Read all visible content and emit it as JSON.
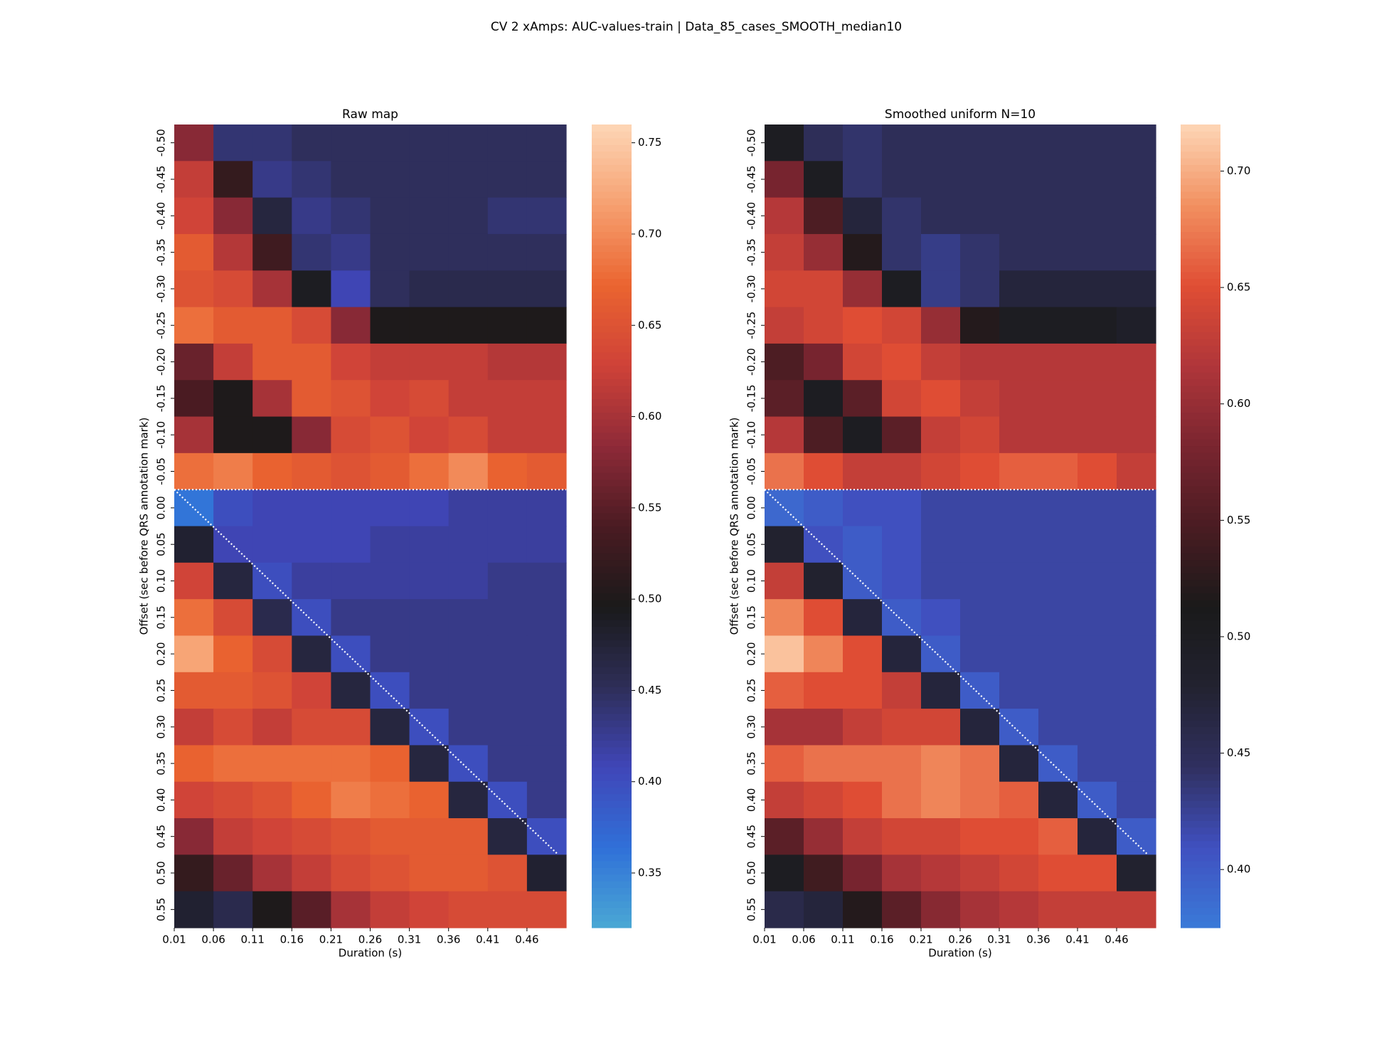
{
  "title": "CV 2 xAmps: AUC-values-train | Data_85_cases_SMOOTH_median10",
  "chart_data": [
    {
      "type": "heatmap",
      "title": "Raw map",
      "xlabel": "Duration (s)",
      "ylabel": "Offset (sec before QRS annotation mark)",
      "x": [
        0.01,
        0.06,
        0.11,
        0.16,
        0.21,
        0.26,
        0.31,
        0.36,
        0.41,
        0.46
      ],
      "y": [
        -0.5,
        -0.45,
        -0.4,
        -0.35,
        -0.3,
        -0.25,
        -0.2,
        -0.15,
        -0.1,
        -0.05,
        0,
        0.05,
        0.1,
        0.15,
        0.2,
        0.25,
        0.3,
        0.35,
        0.4,
        0.45,
        0.5,
        0.55
      ],
      "xlim": [
        0.01,
        0.51
      ],
      "ylim": [
        -0.5,
        0.6
      ],
      "xticks": [
        0.01,
        0.06,
        0.11,
        0.16,
        0.21,
        0.26,
        0.31,
        0.36,
        0.41,
        0.46
      ],
      "yticks": [
        {
          "value": -0.5,
          "label": "-0.50"
        },
        {
          "value": -0.45,
          "label": "-0.45"
        },
        {
          "value": -0.4,
          "label": "-0.40"
        },
        {
          "value": -0.35,
          "label": "-0.35"
        },
        {
          "value": -0.3,
          "label": "-0.30"
        },
        {
          "value": -0.25,
          "label": "-0.25"
        },
        {
          "value": -0.2,
          "label": "-0.20"
        },
        {
          "value": -0.15,
          "label": "-0.15"
        },
        {
          "value": -0.1,
          "label": "-0.10"
        },
        {
          "value": -0.05,
          "label": "-0.05"
        },
        {
          "value": 0,
          "label": "0.00"
        },
        0.05,
        {
          "value": 0.1,
          "label": "0.10"
        },
        0.15,
        {
          "value": 0.2,
          "label": "0.20"
        },
        0.25,
        {
          "value": 0.3,
          "label": "0.30"
        },
        0.35,
        {
          "value": 0.4,
          "label": "0.40"
        },
        0.45,
        {
          "value": 0.5,
          "label": "0.50"
        },
        0.55
      ],
      "values": [
        [
          0.58,
          0.44,
          0.44,
          0.45,
          0.45,
          0.45,
          0.45,
          0.45,
          0.45,
          0.45
        ],
        [
          0.62,
          0.52,
          0.43,
          0.44,
          0.45,
          0.45,
          0.45,
          0.45,
          0.45,
          0.45
        ],
        [
          0.63,
          0.58,
          0.47,
          0.43,
          0.44,
          0.45,
          0.45,
          0.45,
          0.44,
          0.44
        ],
        [
          0.66,
          0.61,
          0.53,
          0.44,
          0.43,
          0.45,
          0.45,
          0.45,
          0.45,
          0.45
        ],
        [
          0.65,
          0.64,
          0.6,
          0.49,
          0.41,
          0.45,
          0.46,
          0.46,
          0.46,
          0.46
        ],
        [
          0.68,
          0.66,
          0.66,
          0.64,
          0.58,
          0.5,
          0.5,
          0.5,
          0.5,
          0.5
        ],
        [
          0.56,
          0.62,
          0.66,
          0.66,
          0.63,
          0.62,
          0.62,
          0.62,
          0.61,
          0.61
        ],
        [
          0.54,
          0.5,
          0.6,
          0.66,
          0.65,
          0.63,
          0.64,
          0.62,
          0.62,
          0.62
        ],
        [
          0.6,
          0.5,
          0.5,
          0.58,
          0.64,
          0.65,
          0.63,
          0.64,
          0.62,
          0.62
        ],
        [
          0.68,
          0.69,
          0.67,
          0.66,
          0.65,
          0.66,
          0.68,
          0.7,
          0.67,
          0.66
        ],
        [
          0.36,
          0.4,
          0.41,
          0.41,
          0.41,
          0.41,
          0.41,
          0.42,
          0.42,
          0.42
        ],
        [
          0.48,
          0.41,
          0.41,
          0.41,
          0.41,
          0.42,
          0.42,
          0.42,
          0.42,
          0.42
        ],
        [
          0.63,
          0.47,
          0.4,
          0.42,
          0.42,
          0.42,
          0.42,
          0.42,
          0.43,
          0.43
        ],
        [
          0.68,
          0.64,
          0.46,
          0.4,
          0.43,
          0.43,
          0.43,
          0.43,
          0.43,
          0.43
        ],
        [
          0.72,
          0.67,
          0.64,
          0.47,
          0.4,
          0.43,
          0.43,
          0.43,
          0.43,
          0.43
        ],
        [
          0.66,
          0.66,
          0.65,
          0.63,
          0.47,
          0.4,
          0.43,
          0.43,
          0.43,
          0.43
        ],
        [
          0.62,
          0.64,
          0.62,
          0.64,
          0.64,
          0.47,
          0.4,
          0.43,
          0.43,
          0.43
        ],
        [
          0.67,
          0.68,
          0.68,
          0.68,
          0.68,
          0.67,
          0.47,
          0.4,
          0.43,
          0.43
        ],
        [
          0.63,
          0.64,
          0.65,
          0.67,
          0.69,
          0.68,
          0.67,
          0.47,
          0.4,
          0.43
        ],
        [
          0.58,
          0.62,
          0.63,
          0.64,
          0.65,
          0.66,
          0.66,
          0.66,
          0.47,
          0.4
        ],
        [
          0.52,
          0.56,
          0.6,
          0.62,
          0.64,
          0.65,
          0.66,
          0.66,
          0.65,
          0.48
        ],
        [
          0.48,
          0.46,
          0.5,
          0.55,
          0.6,
          0.62,
          0.63,
          0.64,
          0.64,
          0.64
        ]
      ],
      "clim": [
        0.32,
        0.76
      ],
      "cticks": [
        0.35,
        {
          "value": 0.4,
          "label": "0.40"
        },
        0.45,
        {
          "value": 0.5,
          "label": "0.50"
        },
        0.55,
        {
          "value": 0.6,
          "label": "0.60"
        },
        0.65,
        {
          "value": 0.7,
          "label": "0.70"
        },
        0.75
      ],
      "colors": [
        "#4aa8d4",
        "#3070d8",
        "#4046b8",
        "#2e2e58",
        "#1a1a1a",
        "#4a1b22",
        "#8e2a38",
        "#cf4238",
        "#ea6430",
        "#f6a070",
        "#fdd6b6"
      ],
      "ref_lines": [
        [
          [
            0.01,
            0
          ],
          [
            0.51,
            0
          ]
        ],
        [
          [
            0.01,
            0
          ],
          [
            0.5,
            0.5
          ]
        ]
      ]
    },
    {
      "type": "heatmap",
      "title": "Smoothed uniform N=10",
      "xlabel": "Duration (s)",
      "ylabel": "Offset (sec before QRS annotation mark)",
      "x": [
        0.01,
        0.06,
        0.11,
        0.16,
        0.21,
        0.26,
        0.31,
        0.36,
        0.41,
        0.46
      ],
      "y": [
        -0.5,
        -0.45,
        -0.4,
        -0.35,
        -0.3,
        -0.25,
        -0.2,
        -0.15,
        -0.1,
        -0.05,
        0,
        0.05,
        0.1,
        0.15,
        0.2,
        0.25,
        0.3,
        0.35,
        0.4,
        0.45,
        0.5,
        0.55
      ],
      "xlim": [
        0.01,
        0.51
      ],
      "ylim": [
        -0.5,
        0.6
      ],
      "xticks": [
        0.01,
        0.06,
        0.11,
        0.16,
        0.21,
        0.26,
        0.31,
        0.36,
        0.41,
        0.46
      ],
      "yticks": [
        {
          "value": -0.5,
          "label": "-0.50"
        },
        {
          "value": -0.45,
          "label": "-0.45"
        },
        {
          "value": -0.4,
          "label": "-0.40"
        },
        {
          "value": -0.35,
          "label": "-0.35"
        },
        {
          "value": -0.3,
          "label": "-0.30"
        },
        {
          "value": -0.25,
          "label": "-0.25"
        },
        {
          "value": -0.2,
          "label": "-0.20"
        },
        {
          "value": -0.15,
          "label": "-0.15"
        },
        {
          "value": -0.1,
          "label": "-0.10"
        },
        {
          "value": -0.05,
          "label": "-0.05"
        },
        {
          "value": 0,
          "label": "0.00"
        },
        0.05,
        {
          "value": 0.1,
          "label": "0.10"
        },
        0.15,
        {
          "value": 0.2,
          "label": "0.20"
        },
        0.25,
        {
          "value": 0.3,
          "label": "0.30"
        },
        0.35,
        {
          "value": 0.4,
          "label": "0.40"
        },
        0.45,
        {
          "value": 0.5,
          "label": "0.50"
        },
        0.55
      ],
      "values": [
        [
          0.5,
          0.45,
          0.44,
          0.45,
          0.45,
          0.45,
          0.45,
          0.45,
          0.45,
          0.45
        ],
        [
          0.58,
          0.5,
          0.44,
          0.45,
          0.45,
          0.45,
          0.45,
          0.45,
          0.45,
          0.45
        ],
        [
          0.62,
          0.55,
          0.47,
          0.44,
          0.45,
          0.45,
          0.45,
          0.45,
          0.45,
          0.45
        ],
        [
          0.63,
          0.6,
          0.52,
          0.44,
          0.43,
          0.44,
          0.45,
          0.45,
          0.45,
          0.45
        ],
        [
          0.64,
          0.64,
          0.6,
          0.5,
          0.43,
          0.44,
          0.47,
          0.47,
          0.47,
          0.47
        ],
        [
          0.63,
          0.64,
          0.65,
          0.64,
          0.6,
          0.52,
          0.5,
          0.5,
          0.5,
          0.49
        ],
        [
          0.55,
          0.58,
          0.64,
          0.65,
          0.63,
          0.62,
          0.62,
          0.62,
          0.62,
          0.62
        ],
        [
          0.56,
          0.5,
          0.56,
          0.64,
          0.65,
          0.63,
          0.62,
          0.62,
          0.62,
          0.62
        ],
        [
          0.62,
          0.55,
          0.5,
          0.56,
          0.63,
          0.64,
          0.62,
          0.62,
          0.62,
          0.62
        ],
        [
          0.67,
          0.65,
          0.63,
          0.63,
          0.64,
          0.65,
          0.66,
          0.66,
          0.65,
          0.63
        ],
        [
          0.39,
          0.4,
          0.41,
          0.41,
          0.42,
          0.42,
          0.42,
          0.42,
          0.42,
          0.42
        ],
        [
          0.48,
          0.41,
          0.4,
          0.41,
          0.42,
          0.42,
          0.42,
          0.42,
          0.42,
          0.42
        ],
        [
          0.63,
          0.48,
          0.4,
          0.41,
          0.42,
          0.42,
          0.42,
          0.42,
          0.42,
          0.42
        ],
        [
          0.68,
          0.65,
          0.47,
          0.4,
          0.41,
          0.42,
          0.42,
          0.42,
          0.42,
          0.42
        ],
        [
          0.71,
          0.68,
          0.65,
          0.47,
          0.4,
          0.42,
          0.42,
          0.42,
          0.42,
          0.42
        ],
        [
          0.66,
          0.65,
          0.65,
          0.63,
          0.47,
          0.4,
          0.42,
          0.42,
          0.42,
          0.42
        ],
        [
          0.61,
          0.61,
          0.63,
          0.64,
          0.64,
          0.47,
          0.4,
          0.42,
          0.42,
          0.42
        ],
        [
          0.66,
          0.67,
          0.67,
          0.67,
          0.68,
          0.67,
          0.47,
          0.4,
          0.42,
          0.42
        ],
        [
          0.63,
          0.64,
          0.65,
          0.67,
          0.68,
          0.67,
          0.66,
          0.47,
          0.4,
          0.42
        ],
        [
          0.56,
          0.6,
          0.63,
          0.64,
          0.64,
          0.65,
          0.65,
          0.66,
          0.47,
          0.4
        ],
        [
          0.5,
          0.54,
          0.58,
          0.61,
          0.62,
          0.63,
          0.64,
          0.65,
          0.65,
          0.48
        ],
        [
          0.46,
          0.47,
          0.52,
          0.56,
          0.59,
          0.61,
          0.62,
          0.63,
          0.63,
          0.63
        ]
      ],
      "clim": [
        0.375,
        0.72
      ],
      "cticks": [
        {
          "value": 0.4,
          "label": "0.40"
        },
        0.45,
        {
          "value": 0.5,
          "label": "0.50"
        },
        0.55,
        {
          "value": 0.6,
          "label": "0.60"
        },
        0.65,
        {
          "value": 0.7,
          "label": "0.70"
        }
      ],
      "colors": [
        "#3a7ad8",
        "#4050c0",
        "#303060",
        "#222230",
        "#1a1a1a",
        "#4a1c22",
        "#7a2530",
        "#b0363a",
        "#e04e34",
        "#f29060",
        "#fdd6b6"
      ],
      "ref_lines": [
        [
          [
            0.01,
            0
          ],
          [
            0.51,
            0
          ]
        ],
        [
          [
            0.01,
            0
          ],
          [
            0.5,
            0.5
          ]
        ]
      ]
    }
  ]
}
